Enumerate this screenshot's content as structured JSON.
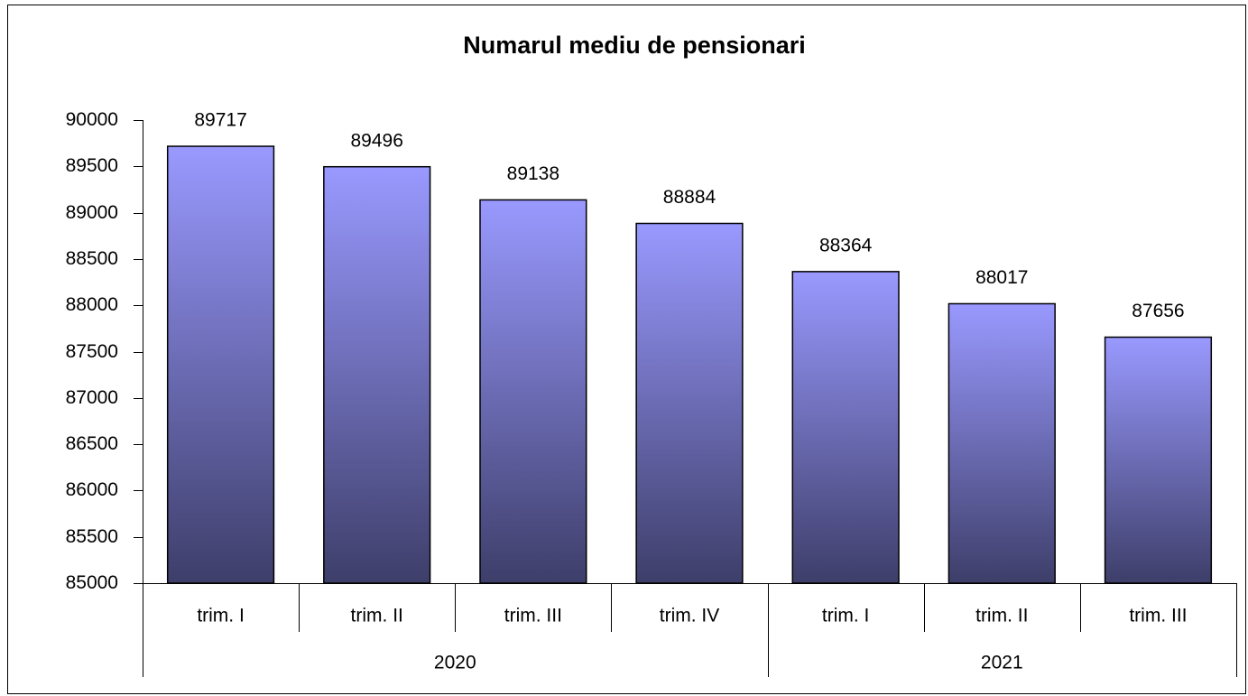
{
  "chart_data": {
    "type": "bar",
    "title": "Numarul mediu de pensionari",
    "groups": [
      {
        "name": "2020",
        "categories": [
          "trim. I",
          "trim. II",
          "trim. III",
          "trim. IV"
        ]
      },
      {
        "name": "2021",
        "categories": [
          "trim. I",
          "trim. II",
          "trim. III"
        ]
      }
    ],
    "values": [
      89717,
      89496,
      89138,
      88884,
      88364,
      88017,
      87656
    ],
    "gradient": [
      "#9999ff",
      "#3e3e6a"
    ],
    "ylim": [
      85000,
      90000
    ],
    "yticks": [
      85000,
      85500,
      86000,
      86500,
      87000,
      87500,
      88000,
      88500,
      89000,
      89500,
      90000
    ],
    "grid": false
  }
}
